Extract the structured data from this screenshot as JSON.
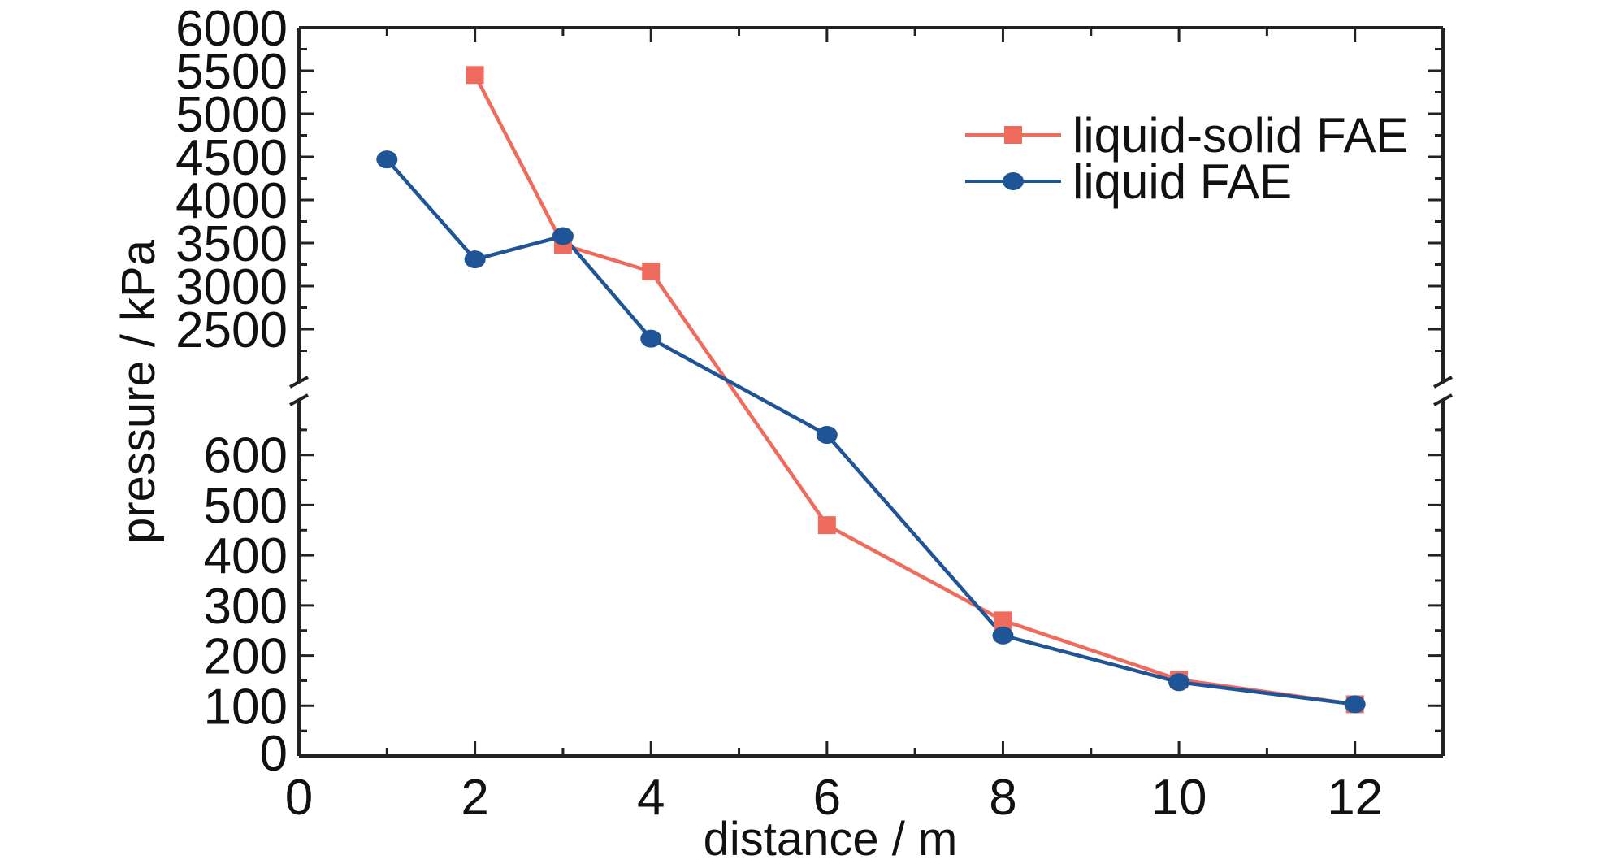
{
  "chart_data": {
    "type": "line",
    "title": "",
    "xlabel": "distance / m",
    "ylabel": "pressure / kPa",
    "xlim": [
      0,
      13
    ],
    "x_ticks": [
      0,
      2,
      4,
      6,
      8,
      10,
      12
    ],
    "y_axis_break": true,
    "y_lower_range": [
      0,
      700
    ],
    "y_lower_ticks": [
      0,
      100,
      200,
      300,
      400,
      500,
      600
    ],
    "y_upper_range": [
      2000,
      6000
    ],
    "y_upper_ticks": [
      2500,
      3000,
      3500,
      4000,
      4500,
      5000,
      5500,
      6000
    ],
    "grid": false,
    "legend_position": "top-right",
    "series": [
      {
        "name": "liquid-solid FAE",
        "color": "#ef6b5e",
        "marker": "square",
        "x": [
          2,
          3,
          4,
          6,
          8,
          10,
          12
        ],
        "y": [
          5450,
          3480,
          3170,
          460,
          270,
          152,
          103
        ]
      },
      {
        "name": "liquid FAE",
        "color": "#1f5496",
        "marker": "circle",
        "x": [
          1,
          2,
          3,
          4,
          6,
          8,
          10,
          12
        ],
        "y": [
          4470,
          3310,
          3580,
          2390,
          640,
          240,
          147,
          103
        ]
      }
    ]
  }
}
